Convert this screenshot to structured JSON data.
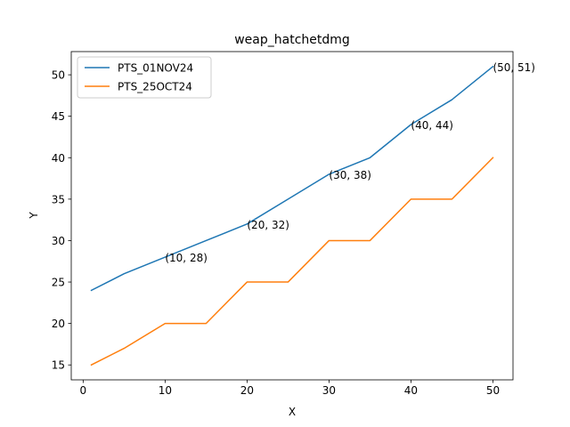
{
  "chart_data": {
    "type": "line",
    "title": "weap_hatchetdmg",
    "xlabel": "X",
    "ylabel": "Y",
    "xlim": [
      -1.45,
      52.45
    ],
    "ylim": [
      13.2,
      52.8
    ],
    "xticks": [
      0,
      10,
      20,
      30,
      40,
      50
    ],
    "yticks": [
      15,
      20,
      25,
      30,
      35,
      40,
      45,
      50
    ],
    "grid": false,
    "legend_position": "top-left",
    "series": [
      {
        "name": "PTS_01NOV24",
        "color": "#1f77b4",
        "x": [
          1,
          5,
          10,
          15,
          20,
          25,
          30,
          35,
          40,
          45,
          50
        ],
        "y": [
          24,
          26,
          28,
          30,
          32,
          35,
          38,
          40,
          44,
          47,
          51
        ]
      },
      {
        "name": "PTS_25OCT24",
        "color": "#ff7f0e",
        "x": [
          1,
          5,
          10,
          15,
          20,
          25,
          30,
          35,
          40,
          45,
          50
        ],
        "y": [
          15,
          17,
          20,
          20,
          25,
          25,
          30,
          30,
          35,
          35,
          40
        ]
      }
    ],
    "annotations": [
      {
        "x": 10,
        "y": 28,
        "text": "(10, 28)"
      },
      {
        "x": 20,
        "y": 32,
        "text": "(20, 32)"
      },
      {
        "x": 30,
        "y": 38,
        "text": "(30, 38)"
      },
      {
        "x": 40,
        "y": 44,
        "text": "(40, 44)"
      },
      {
        "x": 50,
        "y": 51,
        "text": "(50, 51)"
      }
    ]
  }
}
